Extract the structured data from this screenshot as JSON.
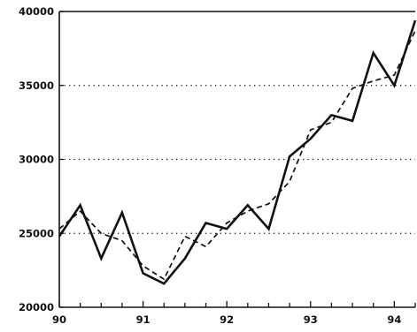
{
  "chart_data": {
    "type": "line",
    "title": "",
    "xlabel": "",
    "ylabel": "",
    "x_ticks": [
      "90",
      "91",
      "92",
      "93",
      "94"
    ],
    "y_ticks": [
      "20000",
      "25000",
      "30000",
      "35000",
      "40000"
    ],
    "xlim": [
      1990.0,
      1994.25
    ],
    "ylim": [
      20000,
      40000
    ],
    "grid": {
      "horizontal": "dotted",
      "vertical": "off"
    },
    "x": [
      1990.0,
      1990.25,
      1990.5,
      1990.75,
      1991.0,
      1991.25,
      1991.5,
      1991.75,
      1992.0,
      1992.25,
      1992.5,
      1992.75,
      1993.0,
      1993.25,
      1993.5,
      1993.75,
      1994.0,
      1994.25
    ],
    "series": [
      {
        "style": "solid",
        "values": [
          24800,
          26900,
          23300,
          26400,
          22300,
          21600,
          23300,
          25700,
          25300,
          26900,
          25300,
          30200,
          31400,
          33000,
          32600,
          37200,
          35000,
          39400
        ]
      },
      {
        "style": "dashed",
        "values": [
          25300,
          26500,
          25000,
          24500,
          22800,
          21900,
          24800,
          24100,
          25700,
          26500,
          27000,
          28500,
          32000,
          32500,
          34800,
          35300,
          35700,
          38700
        ]
      }
    ],
    "colors": {
      "line": "#111111",
      "background": "#ffffff"
    }
  }
}
